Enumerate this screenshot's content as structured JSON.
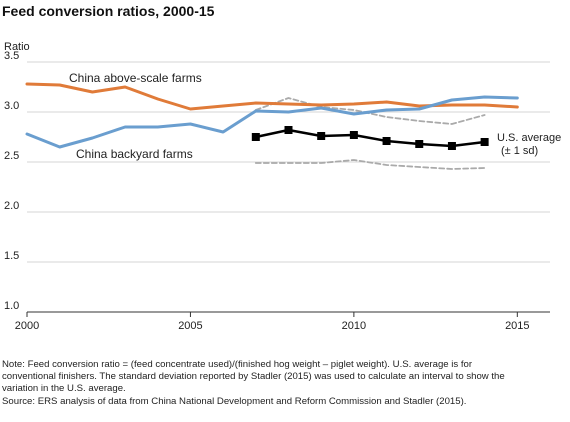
{
  "chart_data": {
    "type": "line",
    "title": "Feed conversion ratios, 2000-15",
    "ylabel": "Ratio",
    "xlabel": "",
    "xlim": [
      2000,
      2016
    ],
    "ylim": [
      1.0,
      3.5
    ],
    "x_ticks": [
      "2000",
      "2005",
      "2010",
      "2015"
    ],
    "y_ticks": [
      "1.0",
      "1.5",
      "2.0",
      "2.5",
      "3.0",
      "3.5"
    ],
    "grid": true,
    "series": [
      {
        "name": "China above-scale farms",
        "color": "#e07b39",
        "style": "solid",
        "x": [
          2000,
          2001,
          2002,
          2003,
          2004,
          2005,
          2006,
          2007,
          2008,
          2009,
          2010,
          2011,
          2012,
          2013,
          2014,
          2015
        ],
        "y": [
          3.28,
          3.27,
          3.2,
          3.25,
          3.13,
          3.03,
          3.06,
          3.09,
          3.08,
          3.07,
          3.08,
          3.1,
          3.06,
          3.07,
          3.07,
          3.05
        ]
      },
      {
        "name": "China backyard farms",
        "color": "#6a9ecf",
        "style": "solid",
        "x": [
          2000,
          2001,
          2002,
          2003,
          2004,
          2005,
          2006,
          2007,
          2008,
          2009,
          2010,
          2011,
          2012,
          2013,
          2014,
          2015
        ],
        "y": [
          2.78,
          2.65,
          2.74,
          2.85,
          2.85,
          2.88,
          2.8,
          3.01,
          3.0,
          3.04,
          2.98,
          3.02,
          3.03,
          3.12,
          3.15,
          3.14
        ]
      },
      {
        "name": "U.S. average (± 1 sd)",
        "color": "#000000",
        "style": "solid-square-markers",
        "x": [
          2007,
          2008,
          2009,
          2010,
          2011,
          2012,
          2013,
          2014
        ],
        "y": [
          2.75,
          2.82,
          2.76,
          2.77,
          2.71,
          2.68,
          2.66,
          2.7
        ]
      },
      {
        "name": "U.S. average +1 sd",
        "color": "#aaaaaa",
        "style": "dashed",
        "x": [
          2007,
          2008,
          2009,
          2010,
          2011,
          2012,
          2013,
          2014
        ],
        "y": [
          3.02,
          3.14,
          3.05,
          3.02,
          2.95,
          2.91,
          2.88,
          2.97
        ]
      },
      {
        "name": "U.S. average -1 sd",
        "color": "#aaaaaa",
        "style": "dashed",
        "x": [
          2007,
          2008,
          2009,
          2010,
          2011,
          2012,
          2013,
          2014
        ],
        "y": [
          2.49,
          2.49,
          2.49,
          2.52,
          2.47,
          2.45,
          2.43,
          2.44
        ]
      }
    ],
    "annotations": {
      "above_scale": "China above-scale farms",
      "backyard": "China backyard farms",
      "us_line1": "U.S. average",
      "us_line2": "(± 1 sd)"
    }
  },
  "notes": {
    "line1": "Note: Feed conversion ratio = (feed concentrate used)/(finished hog weight – piglet weight). U.S. average is for",
    "line2": "conventional finishers. The standard deviation reported by Stadler (2015) was used to calculate an interval to show the",
    "line3": "variation in the U.S. average.",
    "line4": "Source: ERS analysis of data from China National Development and Reform Commission and Stadler (2015)."
  }
}
